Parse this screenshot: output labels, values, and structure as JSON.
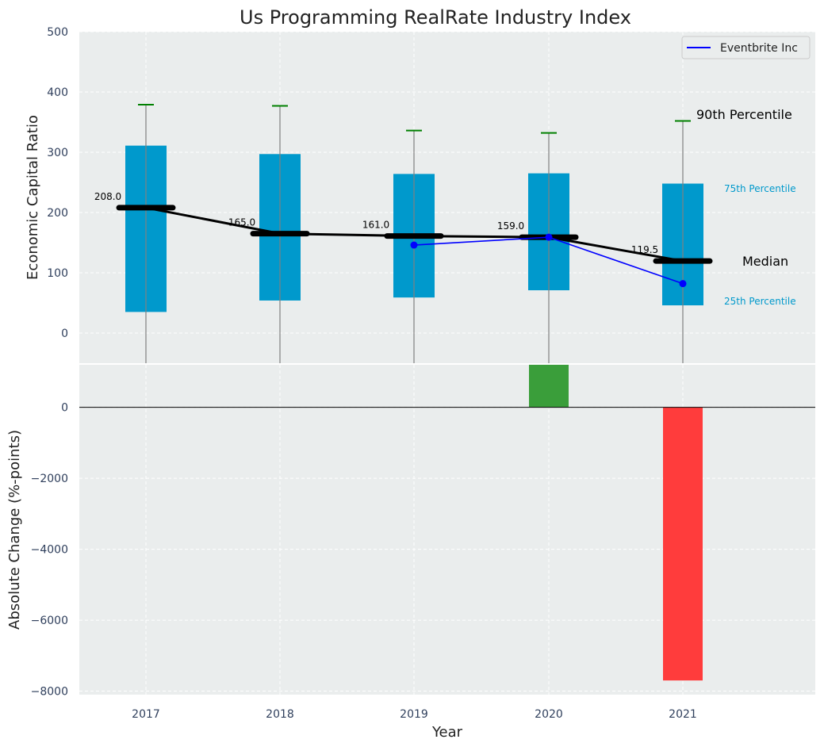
{
  "chart_data": [
    {
      "type": "box",
      "title": "Us Programming RealRate Industry Index",
      "ylabel": "Economic Capital Ratio",
      "xlabel": "Year",
      "ylim": [
        -50,
        500
      ],
      "yticks": [
        0,
        100,
        200,
        300,
        400,
        500
      ],
      "categories": [
        "2017",
        "2018",
        "2019",
        "2020",
        "2021"
      ],
      "boxes": [
        {
          "year": "2017",
          "p25": 35,
          "p75": 311,
          "median": 208.0,
          "p90": 379
        },
        {
          "year": "2018",
          "p25": 54,
          "p75": 297,
          "median": 165.0,
          "p90": 377
        },
        {
          "year": "2019",
          "p25": 59,
          "p75": 264,
          "median": 161.0,
          "p90": 336
        },
        {
          "year": "2020",
          "p25": 71,
          "p75": 265,
          "median": 159.0,
          "p90": 332
        },
        {
          "year": "2021",
          "p25": 46,
          "p75": 248,
          "median": 119.5,
          "p90": 352
        }
      ],
      "median_labels": [
        "208.0",
        "165.0",
        "161.0",
        "159.0",
        "119.5"
      ],
      "series": [
        {
          "name": "Eventbrite Inc",
          "x": [
            "2019",
            "2020",
            "2021"
          ],
          "values": [
            146,
            159,
            82
          ],
          "color": "#0000ff"
        }
      ],
      "annotations": {
        "p90": "90th Percentile",
        "p75": "75th Percentile",
        "median": "Median",
        "p25": "25th Percentile"
      },
      "legend": {
        "placement": "top-right",
        "entries": [
          "Eventbrite Inc"
        ]
      },
      "grid": true,
      "colors": {
        "box": "#0099cc",
        "median": "#000000",
        "whisker_cap": "#008000",
        "background": "#eaeded"
      }
    },
    {
      "type": "bar",
      "ylabel": "Absolute Change (%-points)",
      "xlabel": "Year",
      "ylim": [
        -8100,
        1200
      ],
      "yticks": [
        0,
        -2000,
        -4000,
        -6000,
        -8000
      ],
      "ytick_labels": [
        "0",
        "−2000",
        "−4000",
        "−6000",
        "−8000"
      ],
      "categories": [
        "2017",
        "2018",
        "2019",
        "2020",
        "2021"
      ],
      "values": [
        null,
        null,
        null,
        1200,
        -7700
      ],
      "colors": {
        "positive": "#3a9e3a",
        "negative": "#ff3c3c"
      },
      "grid": true
    }
  ]
}
